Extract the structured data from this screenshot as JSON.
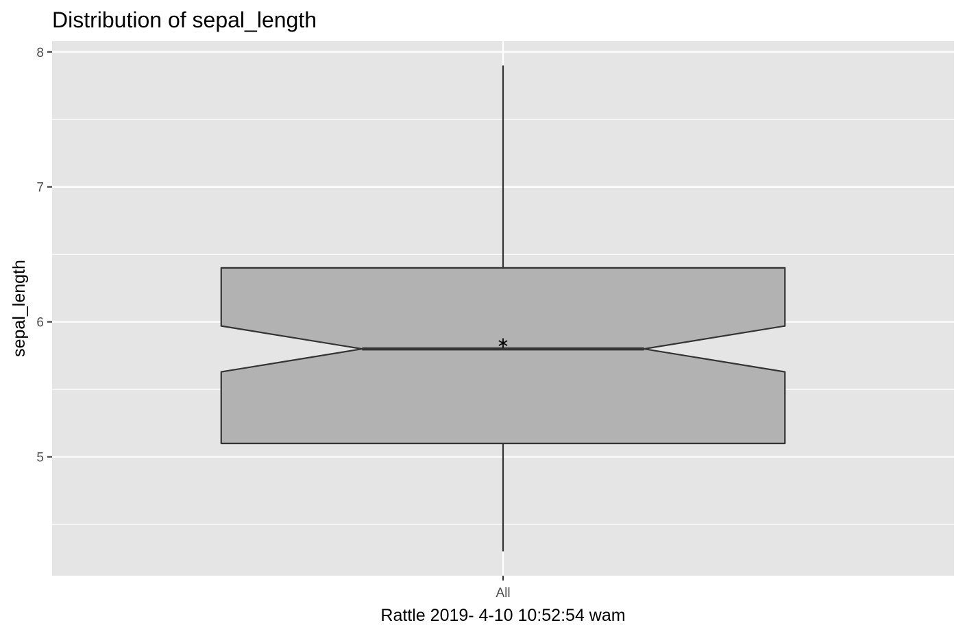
{
  "chart_data": {
    "type": "boxplot",
    "title": "Distribution of sepal_length",
    "xlabel": "Rattle 2019- 4-10 10:52:54 wam",
    "ylabel": "sepal_length",
    "categories": [
      "All"
    ],
    "y_ticks": [
      "5",
      "6",
      "7",
      "8"
    ],
    "ylim": [
      4.12,
      8.08
    ],
    "grid": true,
    "notched": true,
    "box": {
      "category": "All",
      "min": 4.3,
      "q1": 5.1,
      "median": 5.8,
      "q3": 6.4,
      "max": 7.9,
      "notch_lower": 5.63,
      "notch_upper": 5.97,
      "mean": 5.843
    },
    "colors": {
      "panel": "#e5e5e5",
      "grid": "#ffffff",
      "box_fill": "#b2b2b2",
      "box_line": "#333333"
    }
  }
}
